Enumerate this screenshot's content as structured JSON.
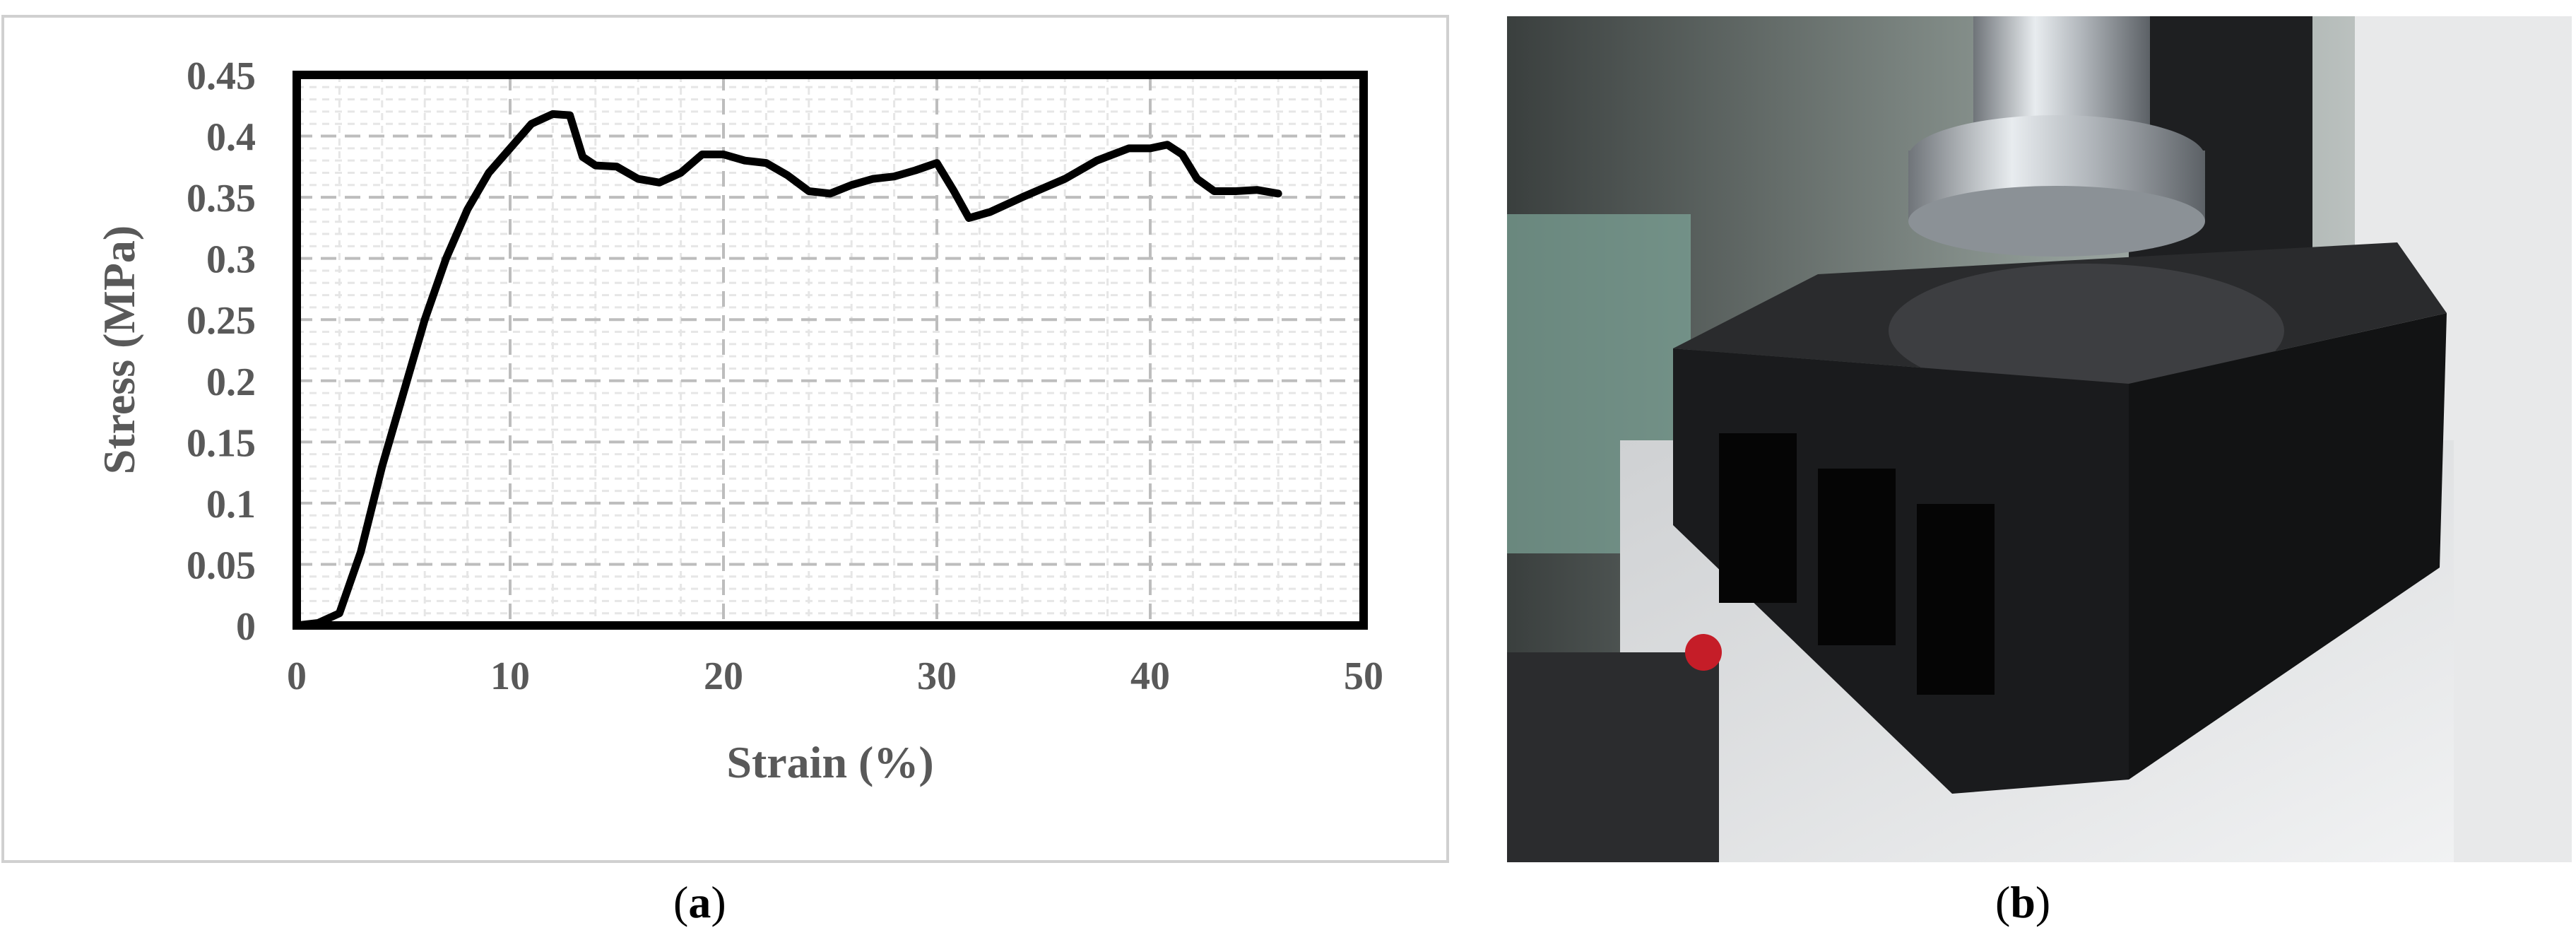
{
  "chart_data": {
    "type": "line",
    "title": "",
    "xlabel": "Strain (%)",
    "ylabel": "Stress (MPa)",
    "xlim": [
      0,
      50
    ],
    "ylim": [
      0,
      0.45
    ],
    "x_ticks": [
      "0",
      "10",
      "20",
      "30",
      "40",
      "50"
    ],
    "y_ticks": [
      "0",
      "0.05",
      "0.1",
      "0.15",
      "0.2",
      "0.25",
      "0.3",
      "0.35",
      "0.4",
      "0.45"
    ],
    "grid": true,
    "series": [
      {
        "name": "",
        "color": "#000000",
        "points": [
          [
            0,
            0
          ],
          [
            1,
            0.002
          ],
          [
            2,
            0.01
          ],
          [
            3,
            0.06
          ],
          [
            4,
            0.13
          ],
          [
            5,
            0.19
          ],
          [
            6,
            0.25
          ],
          [
            7,
            0.3
          ],
          [
            8,
            0.34
          ],
          [
            9,
            0.37
          ],
          [
            10,
            0.39
          ],
          [
            11,
            0.41
          ],
          [
            12,
            0.418
          ],
          [
            12.8,
            0.417
          ],
          [
            13.4,
            0.383
          ],
          [
            14,
            0.376
          ],
          [
            15,
            0.375
          ],
          [
            16,
            0.365
          ],
          [
            17,
            0.362
          ],
          [
            18,
            0.37
          ],
          [
            19,
            0.385
          ],
          [
            20,
            0.385
          ],
          [
            21,
            0.38
          ],
          [
            22,
            0.378
          ],
          [
            23,
            0.368
          ],
          [
            24,
            0.355
          ],
          [
            25,
            0.353
          ],
          [
            26,
            0.36
          ],
          [
            27,
            0.365
          ],
          [
            28,
            0.367
          ],
          [
            29,
            0.372
          ],
          [
            30,
            0.378
          ],
          [
            30.8,
            0.355
          ],
          [
            31.5,
            0.333
          ],
          [
            32.5,
            0.338
          ],
          [
            34,
            0.35
          ],
          [
            36,
            0.365
          ],
          [
            37.5,
            0.38
          ],
          [
            39,
            0.39
          ],
          [
            40,
            0.39
          ],
          [
            40.8,
            0.393
          ],
          [
            41.5,
            0.385
          ],
          [
            42.2,
            0.365
          ],
          [
            43,
            0.355
          ],
          [
            44,
            0.355
          ],
          [
            45,
            0.356
          ],
          [
            46,
            0.353
          ]
        ]
      }
    ]
  },
  "colors": {
    "line": "#000000",
    "grid_major": "#bdbdbd",
    "grid_minor": "#e6e6e6",
    "axis_text": "#595959",
    "frame": "#d0d0d0"
  },
  "labels": {
    "panel_a": "a",
    "panel_b": "b"
  }
}
